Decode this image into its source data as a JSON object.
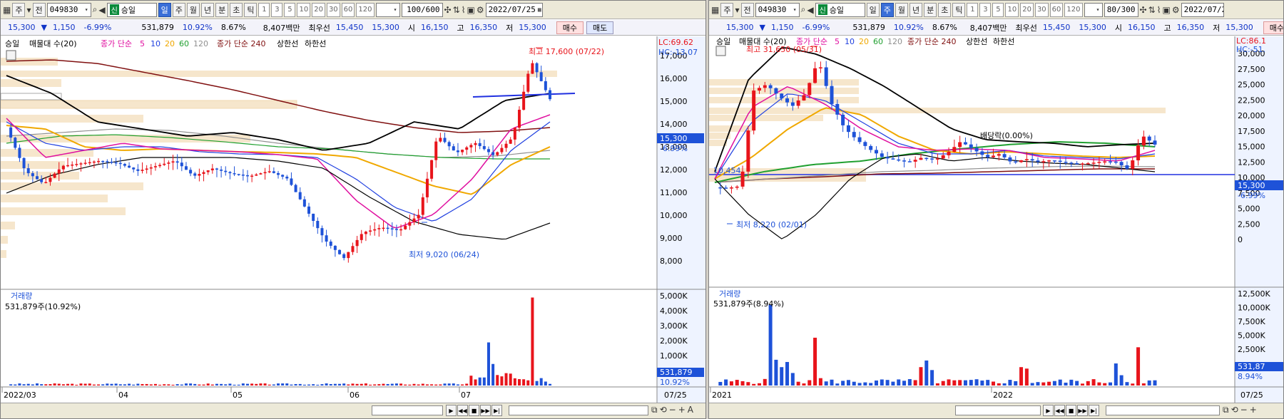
{
  "left": {
    "toolbar": {
      "mode": "주",
      "prev": "전",
      "code": "049830",
      "name": "승일",
      "badge": "신",
      "periods": [
        "일",
        "주",
        "월",
        "년",
        "분",
        "초",
        "틱"
      ],
      "active_period": "일",
      "nums": [
        "1",
        "3",
        "5",
        "10",
        "20",
        "30",
        "60",
        "120"
      ],
      "count": "100/600",
      "date": "2022/07/25"
    },
    "quote": {
      "price": "15,300",
      "down_mark": "▼",
      "change": "1,150",
      "rate": "-6.99%",
      "volume": "531,879",
      "turnover": "10.92%",
      "ratio": "8.67%",
      "amount": "8,407백만",
      "best_label": "최우선",
      "best_ask": "15,450",
      "best_bid": "15,300",
      "open_label": "시",
      "open": "16,150",
      "high_label": "고",
      "high": "16,350",
      "low_label": "저",
      "low": "15,300",
      "buy": "매수",
      "sell": "매도"
    },
    "legend": {
      "name": "승일",
      "env": "매물대 수(20)",
      "ma_label": "종가 단순",
      "ma_periods": [
        "5",
        "10",
        "20",
        "60",
        "120"
      ],
      "ma240": "종가 단순 240",
      "upper": "상한선",
      "lower": "하한선"
    },
    "lc": "LC:69.62",
    "hc": "HC:-13.07",
    "y_ticks": [
      "17,000",
      "16,000",
      "15,000",
      "14,000",
      "13,000",
      "12,000",
      "11,000",
      "10,000",
      "9,000",
      "8,000"
    ],
    "price_tag": "15,300",
    "price_pct": "-6.99%",
    "max_note": "최고 17,600 (07/22)",
    "min_note": "최저 9,020 (06/24)",
    "vol_title": "거래량",
    "vol_value": "531,879주(10.92%)",
    "vol_ticks": [
      "5,000K",
      "4,000K",
      "3,000K",
      "2,000K",
      "1,000K"
    ],
    "vol_tag": "531,879",
    "vol_pct": "10.92%",
    "x_ticks": [
      "2022/03",
      "04",
      "05",
      "06",
      "07"
    ],
    "x_end": "07/25"
  },
  "right": {
    "toolbar": {
      "mode": "주",
      "prev": "전",
      "code": "049830",
      "name": "승일",
      "badge": "신",
      "periods": [
        "일",
        "주",
        "월",
        "년",
        "분",
        "초",
        "틱"
      ],
      "active_period": "주",
      "nums": [
        "1",
        "3",
        "5",
        "10",
        "20",
        "30",
        "60",
        "120"
      ],
      "count": "80/300",
      "date": "2022/07/25"
    },
    "quote": {
      "price": "15,300",
      "down_mark": "▼",
      "change": "1,150",
      "rate": "-6.99%",
      "volume": "531,879",
      "turnover": "10.92%",
      "ratio": "8.67%",
      "amount": "8,407백만",
      "best_label": "최우선",
      "best_ask": "15,450",
      "best_bid": "15,300",
      "open_label": "시",
      "open": "16,150",
      "high_label": "고",
      "high": "16,350",
      "low_label": "저",
      "low": "15,300",
      "buy": "매수"
    },
    "legend": {
      "name": "승일",
      "env": "매물대 수(20)",
      "ma_label": "종가 단순",
      "ma_periods": [
        "5",
        "10",
        "20",
        "60",
        "120"
      ],
      "ma240": "종가 단순 240",
      "upper": "상한선",
      "lower": "하한선"
    },
    "lc": "LC:86.1",
    "hc": "HC:-51.",
    "y_ticks": [
      "30,000",
      "27,500",
      "25,000",
      "22,500",
      "20,000",
      "17,500",
      "15,000",
      "12,500",
      "10,000",
      "7,500",
      "5,000",
      "2,500",
      "0"
    ],
    "price_tag": "15,300",
    "price_pct": "-6.99%",
    "max_note": "최고 31,650 (05/31)",
    "min_note": "최저 8,220 (02/01)",
    "allot_note": "배당락(0.00%)",
    "level": "10,454",
    "vol_title": "거래량",
    "vol_value": "531,879주(8.94%)",
    "vol_ticks": [
      "12,500K",
      "10,000K",
      "7,500K",
      "5,000K",
      "2,500K"
    ],
    "vol_tag": "531,87",
    "vol_pct": "8.94%",
    "x_ticks": [
      "2021",
      "2022"
    ],
    "x_end": "07/25"
  },
  "colors": {
    "up": "#e8141b",
    "down": "#1e52d8",
    "ma5": "#e010a0",
    "ma10": "#2040e0",
    "ma20": "#f0a800",
    "ma60": "#20a030",
    "ma120": "#909090",
    "ma240": "#801010",
    "band": "#000000"
  }
}
